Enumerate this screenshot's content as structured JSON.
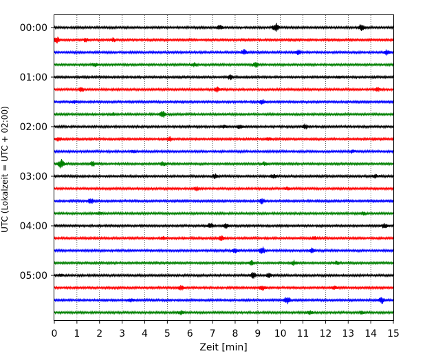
{
  "chart_data": {
    "type": "line",
    "title": "",
    "xlabel": "Zeit  [min]",
    "ylabel": "UTC (Lokalzeit = UTC + 02:00)",
    "xlim": [
      0,
      15
    ],
    "x_ticks": [
      0,
      1,
      2,
      3,
      4,
      5,
      6,
      7,
      8,
      9,
      10,
      11,
      12,
      13,
      14,
      15
    ],
    "x_tick_labels": [
      "0",
      "1",
      "2",
      "3",
      "4",
      "5",
      "6",
      "7",
      "8",
      "9",
      "10",
      "11",
      "12",
      "13",
      "14",
      "15"
    ],
    "y_ticks": [
      "00:00",
      "01:00",
      "02:00",
      "03:00",
      "04:00",
      "05:00"
    ],
    "grid": "vertical dotted lines at each minute",
    "legend": "none",
    "trace_interval_min": 15,
    "trace_colors": [
      "#000000",
      "#ff0000",
      "#0000ff",
      "#008000"
    ],
    "traces": [
      {
        "time": "00:00",
        "color": "#000000",
        "events": [
          [
            7.3,
            0.5
          ],
          [
            9.8,
            1.0
          ],
          [
            13.6,
            0.8
          ]
        ]
      },
      {
        "time": "00:15",
        "color": "#ff0000",
        "events": [
          [
            0.1,
            0.7
          ],
          [
            1.4,
            0.4
          ],
          [
            2.6,
            0.4
          ]
        ]
      },
      {
        "time": "00:30",
        "color": "#0000ff",
        "events": [
          [
            8.4,
            0.6
          ],
          [
            10.8,
            0.5
          ],
          [
            14.7,
            0.5
          ]
        ]
      },
      {
        "time": "00:45",
        "color": "#008000",
        "events": [
          [
            1.8,
            0.4
          ],
          [
            6.2,
            0.4
          ],
          [
            8.9,
            0.5
          ]
        ]
      },
      {
        "time": "01:00",
        "color": "#000000",
        "events": [
          [
            7.8,
            0.5
          ],
          [
            12.6,
            0.3
          ]
        ]
      },
      {
        "time": "01:15",
        "color": "#ff0000",
        "events": [
          [
            1.2,
            0.5
          ],
          [
            7.2,
            0.6
          ],
          [
            14.3,
            0.4
          ]
        ]
      },
      {
        "time": "01:30",
        "color": "#0000ff",
        "events": [
          [
            0.9,
            0.3
          ],
          [
            9.2,
            0.5
          ]
        ]
      },
      {
        "time": "01:45",
        "color": "#008000",
        "events": [
          [
            4.8,
            0.7
          ],
          [
            2.6,
            0.3
          ]
        ]
      },
      {
        "time": "02:00",
        "color": "#000000",
        "events": [
          [
            7.5,
            0.3
          ],
          [
            8.2,
            0.4
          ],
          [
            11.1,
            0.5
          ]
        ]
      },
      {
        "time": "02:15",
        "color": "#ff0000",
        "events": [
          [
            0.2,
            0.5
          ],
          [
            5.1,
            0.4
          ],
          [
            9.5,
            0.3
          ]
        ]
      },
      {
        "time": "02:30",
        "color": "#0000ff",
        "events": [
          [
            3.5,
            0.3
          ],
          [
            13.2,
            0.3
          ]
        ]
      },
      {
        "time": "02:45",
        "color": "#008000",
        "events": [
          [
            0.3,
            1.0
          ],
          [
            1.7,
            0.5
          ],
          [
            4.8,
            0.4
          ],
          [
            9.3,
            0.4
          ]
        ]
      },
      {
        "time": "03:00",
        "color": "#000000",
        "events": [
          [
            7.1,
            0.5
          ],
          [
            9.7,
            0.4
          ],
          [
            14.2,
            0.4
          ]
        ]
      },
      {
        "time": "03:15",
        "color": "#ff0000",
        "events": [
          [
            6.3,
            0.4
          ],
          [
            10.3,
            0.3
          ]
        ]
      },
      {
        "time": "03:30",
        "color": "#0000ff",
        "events": [
          [
            1.6,
            0.6
          ],
          [
            9.2,
            0.6
          ]
        ]
      },
      {
        "time": "03:45",
        "color": "#008000",
        "events": [
          [
            2.0,
            0.3
          ],
          [
            13.7,
            0.3
          ]
        ]
      },
      {
        "time": "04:00",
        "color": "#000000",
        "events": [
          [
            6.9,
            0.6
          ],
          [
            7.6,
            0.5
          ],
          [
            14.6,
            0.5
          ]
        ]
      },
      {
        "time": "04:15",
        "color": "#ff0000",
        "events": [
          [
            4.8,
            0.3
          ],
          [
            7.4,
            0.6
          ],
          [
            11.5,
            0.3
          ]
        ]
      },
      {
        "time": "04:30",
        "color": "#0000ff",
        "events": [
          [
            9.2,
            0.8
          ],
          [
            8.0,
            0.5
          ],
          [
            11.4,
            0.5
          ]
        ]
      },
      {
        "time": "04:45",
        "color": "#008000",
        "events": [
          [
            8.7,
            0.5
          ],
          [
            10.6,
            0.5
          ],
          [
            12.5,
            0.4
          ]
        ]
      },
      {
        "time": "05:00",
        "color": "#000000",
        "events": [
          [
            8.8,
            0.6
          ],
          [
            9.5,
            0.4
          ],
          [
            0.3,
            0.3
          ]
        ]
      },
      {
        "time": "05:15",
        "color": "#ff0000",
        "events": [
          [
            5.6,
            0.5
          ],
          [
            9.2,
            0.6
          ],
          [
            12.4,
            0.3
          ]
        ]
      },
      {
        "time": "05:30",
        "color": "#0000ff",
        "events": [
          [
            10.3,
            0.8
          ],
          [
            14.5,
            0.7
          ],
          [
            3.4,
            0.4
          ]
        ]
      },
      {
        "time": "05:45",
        "color": "#008000",
        "events": [
          [
            5.6,
            0.4
          ],
          [
            11.3,
            0.4
          ],
          [
            13.6,
            0.3
          ]
        ]
      }
    ]
  }
}
